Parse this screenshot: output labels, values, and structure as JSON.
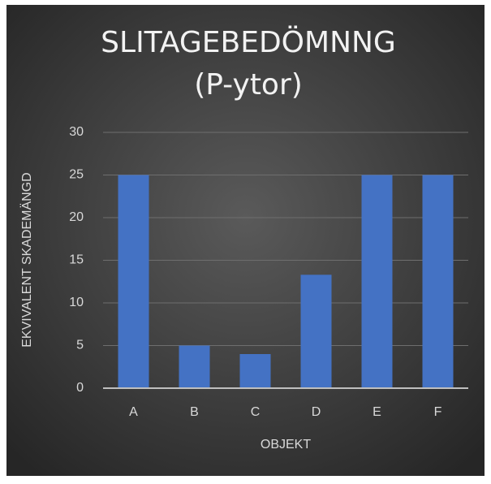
{
  "chart_data": {
    "type": "bar",
    "title": [
      "SLITAGEBEDÖMNNG",
      "(P-ytor)"
    ],
    "x_label": "OBJEKT",
    "y_label": "EKVIVALENT SKADEMÄNGD",
    "categories": [
      "A",
      "B",
      "C",
      "D",
      "E",
      "F"
    ],
    "values": [
      25,
      5,
      4,
      13.3,
      25,
      25
    ],
    "color": "#4472c4",
    "ylim": [
      0,
      30
    ],
    "yticks": [
      0,
      5,
      10,
      15,
      20,
      25,
      30
    ],
    "grid": true
  }
}
